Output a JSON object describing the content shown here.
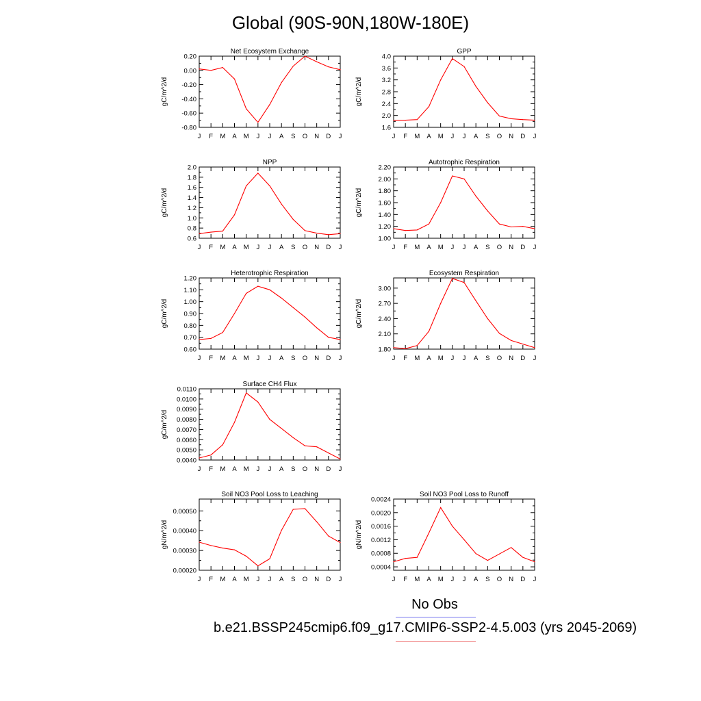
{
  "title": "Global (90S-90N,180W-180E)",
  "legend": {
    "obs_label": "No Obs",
    "case_label": "b.e21.BSSP245cmip6.f09_g17.CMIP6-SSP2-4.5.003 (yrs 2045-2069)",
    "obs_color": "#7777ee",
    "case_color": "#ee7777"
  },
  "chart_data": [
    {
      "type": "line",
      "title": "Net Ecosystem Exchange",
      "ylabel": "gC/m^2/d",
      "categories": [
        "J",
        "F",
        "M",
        "A",
        "M",
        "J",
        "J",
        "A",
        "S",
        "O",
        "N",
        "D",
        "J"
      ],
      "values": [
        0.02,
        0.0,
        0.04,
        -0.12,
        -0.54,
        -0.73,
        -0.48,
        -0.17,
        0.06,
        0.2,
        0.12,
        0.05,
        0.01
      ],
      "ylim": [
        -0.8,
        0.2
      ],
      "yticks": [
        "-0.80",
        "-0.60",
        "-0.40",
        "-0.20",
        "0.00",
        "0.20"
      ],
      "color": "#ff0000"
    },
    {
      "type": "line",
      "title": "GPP",
      "ylabel": "gC/m^2/d",
      "categories": [
        "J",
        "F",
        "M",
        "A",
        "M",
        "J",
        "J",
        "A",
        "S",
        "O",
        "N",
        "D",
        "J"
      ],
      "values": [
        1.84,
        1.84,
        1.86,
        2.3,
        3.2,
        3.92,
        3.65,
        2.98,
        2.43,
        1.98,
        1.89,
        1.86,
        1.84
      ],
      "ylim": [
        1.6,
        4.0
      ],
      "yticks": [
        "1.6",
        "2.0",
        "2.4",
        "2.8",
        "3.2",
        "3.6",
        "4.0"
      ],
      "color": "#ff0000"
    },
    {
      "type": "line",
      "title": "NPP",
      "ylabel": "gC/m^2/d",
      "categories": [
        "J",
        "F",
        "M",
        "A",
        "M",
        "J",
        "J",
        "A",
        "S",
        "O",
        "N",
        "D",
        "J"
      ],
      "values": [
        0.69,
        0.72,
        0.74,
        1.06,
        1.63,
        1.88,
        1.63,
        1.27,
        0.97,
        0.75,
        0.7,
        0.67,
        0.69
      ],
      "ylim": [
        0.6,
        2.0
      ],
      "yticks": [
        "0.6",
        "0.8",
        "1.0",
        "1.2",
        "1.4",
        "1.6",
        "1.8",
        "2.0"
      ],
      "color": "#ff0000"
    },
    {
      "type": "line",
      "title": "Autotrophic Respiration",
      "ylabel": "gC/m^2/d",
      "categories": [
        "J",
        "F",
        "M",
        "A",
        "M",
        "J",
        "J",
        "A",
        "S",
        "O",
        "N",
        "D",
        "J"
      ],
      "values": [
        1.16,
        1.13,
        1.14,
        1.24,
        1.6,
        2.05,
        2.0,
        1.71,
        1.46,
        1.24,
        1.19,
        1.2,
        1.16
      ],
      "ylim": [
        1.0,
        2.2
      ],
      "yticks": [
        "1.00",
        "1.20",
        "1.40",
        "1.60",
        "1.80",
        "2.00",
        "2.20"
      ],
      "color": "#ff0000"
    },
    {
      "type": "line",
      "title": "Heterotrophic Respiration",
      "ylabel": "gC/m^2/d",
      "categories": [
        "J",
        "F",
        "M",
        "A",
        "M",
        "J",
        "J",
        "A",
        "S",
        "O",
        "N",
        "D",
        "J"
      ],
      "values": [
        0.68,
        0.69,
        0.74,
        0.9,
        1.07,
        1.13,
        1.1,
        1.03,
        0.95,
        0.87,
        0.78,
        0.7,
        0.68
      ],
      "ylim": [
        0.6,
        1.2
      ],
      "yticks": [
        "0.60",
        "0.70",
        "0.80",
        "0.90",
        "1.00",
        "1.10",
        "1.20"
      ],
      "color": "#ff0000"
    },
    {
      "type": "line",
      "title": "Ecosystem Respiration",
      "ylabel": "gC/m^2/d",
      "categories": [
        "J",
        "F",
        "M",
        "A",
        "M",
        "J",
        "J",
        "A",
        "S",
        "O",
        "N",
        "D",
        "J"
      ],
      "values": [
        1.83,
        1.81,
        1.87,
        2.15,
        2.7,
        3.19,
        3.11,
        2.75,
        2.4,
        2.11,
        1.97,
        1.9,
        1.83
      ],
      "ylim": [
        1.8,
        3.2
      ],
      "yticks": [
        "1.80",
        "2.10",
        "2.40",
        "2.70",
        "3.00"
      ],
      "color": "#ff0000"
    },
    {
      "type": "line",
      "title": "Surface CH4 Flux",
      "ylabel": "gC/m^2/d",
      "categories": [
        "J",
        "F",
        "M",
        "A",
        "M",
        "J",
        "J",
        "A",
        "S",
        "O",
        "N",
        "D",
        "J"
      ],
      "values": [
        0.0042,
        0.0045,
        0.0055,
        0.0077,
        0.0106,
        0.0097,
        0.008,
        0.0071,
        0.0062,
        0.0054,
        0.0053,
        0.0047,
        0.0041
      ],
      "ylim": [
        0.004,
        0.011
      ],
      "yticks": [
        "0.0040",
        "0.0050",
        "0.0060",
        "0.0070",
        "0.0080",
        "0.0090",
        "0.0100",
        "0.0110"
      ],
      "color": "#ff0000"
    },
    {
      "type": "line",
      "title": "Soil NO3 Pool Loss to Leaching",
      "ylabel": "gN/m^2/d",
      "categories": [
        "J",
        "F",
        "M",
        "A",
        "M",
        "J",
        "J",
        "A",
        "S",
        "O",
        "N",
        "D",
        "J"
      ],
      "values": [
        0.000342,
        0.000325,
        0.000312,
        0.000303,
        0.000271,
        0.000222,
        0.000258,
        0.000402,
        0.000508,
        0.000512,
        0.000445,
        0.000373,
        0.00034
      ],
      "ylim": [
        0.0002,
        0.00056
      ],
      "yticks": [
        "0.00020",
        "0.00030",
        "0.00040",
        "0.00050"
      ],
      "color": "#ff0000"
    },
    {
      "type": "line",
      "title": "Soil NO3 Pool Loss to Runoff",
      "ylabel": "gN/m^2/d",
      "categories": [
        "J",
        "F",
        "M",
        "A",
        "M",
        "J",
        "J",
        "A",
        "S",
        "O",
        "N",
        "D",
        "J"
      ],
      "values": [
        0.00055,
        0.00065,
        0.00068,
        0.0014,
        0.00215,
        0.0016,
        0.0012,
        0.00079,
        0.00059,
        0.00078,
        0.00097,
        0.00068,
        0.00055
      ],
      "ylim": [
        0.0003,
        0.0024
      ],
      "yticks": [
        "0.0004",
        "0.0008",
        "0.0012",
        "0.0016",
        "0.0020",
        "0.0024"
      ],
      "color": "#ff0000"
    }
  ]
}
